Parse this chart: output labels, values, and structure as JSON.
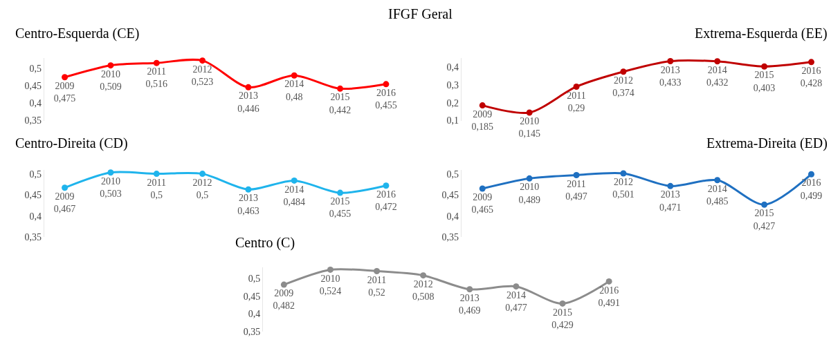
{
  "chart_data": [
    {
      "type": "line",
      "title": "IFGF Geral",
      "subtitle": "Centro-Esquerda (CE)",
      "categories": [
        "2009",
        "2010",
        "2011",
        "2012",
        "2013",
        "2014",
        "2015",
        "2016"
      ],
      "series": [
        {
          "color": "#ff0000",
          "values": [
            0.475,
            0.509,
            0.516,
            0.523,
            0.446,
            0.48,
            0.442,
            0.455
          ],
          "value_labels": [
            "2009\n0,475",
            "2010\n0,509",
            "2011\n0,516",
            "2012\n0,523",
            "2013\n0,446",
            "2014\n0,48",
            "2015\n0,442",
            "2016\n0,455"
          ]
        }
      ],
      "ylim": [
        0.35,
        0.53
      ],
      "yticks": [
        {
          "value": 0.35,
          "label": "0,35"
        },
        {
          "value": 0.4,
          "label": "0,4"
        },
        {
          "value": 0.45,
          "label": "0,45"
        },
        {
          "value": 0.5,
          "label": "0,5"
        }
      ],
      "tick_labels": "y",
      "marker": "circle",
      "line_style": "solid"
    },
    {
      "type": "line",
      "subtitle": "Extrema-Esquerda (EE)",
      "categories": [
        "2009",
        "2010",
        "2011",
        "2012",
        "2013",
        "2014",
        "2015",
        "2016"
      ],
      "series": [
        {
          "color": "#c00000",
          "values": [
            0.185,
            0.145,
            0.29,
            0.374,
            0.433,
            0.432,
            0.403,
            0.428
          ],
          "value_labels": [
            "2009\n0,185",
            "2010\n0,145",
            "2011\n0,29",
            "2012\n0,374",
            "2013\n0,433",
            "2014\n0,432",
            "2015\n0,403",
            "2016\n0,428"
          ]
        }
      ],
      "ylim": [
        0.1,
        0.45
      ],
      "yticks": [
        {
          "value": 0.1,
          "label": "0,1"
        },
        {
          "value": 0.2,
          "label": "0,2"
        },
        {
          "value": 0.3,
          "label": "0,3"
        },
        {
          "value": 0.4,
          "label": "0,4"
        }
      ],
      "tick_labels": "y",
      "marker": "circle",
      "line_style": "solid"
    },
    {
      "type": "line",
      "subtitle": "Centro-Direita (CD)",
      "categories": [
        "2009",
        "2010",
        "2011",
        "2012",
        "2013",
        "2014",
        "2015",
        "2016"
      ],
      "series": [
        {
          "color": "#1fb4ec",
          "values": [
            0.467,
            0.503,
            0.5,
            0.5,
            0.463,
            0.484,
            0.455,
            0.472
          ],
          "value_labels": [
            "2009\n0,467",
            "2010\n0,503",
            "2011\n0,5",
            "2012\n0,5",
            "2013\n0,463",
            "2014\n0,484",
            "2015\n0,455",
            "2016\n0,472"
          ]
        }
      ],
      "ylim": [
        0.35,
        0.51
      ],
      "yticks": [
        {
          "value": 0.35,
          "label": "0,35"
        },
        {
          "value": 0.4,
          "label": "0,4"
        },
        {
          "value": 0.45,
          "label": "0,45"
        },
        {
          "value": 0.5,
          "label": "0,5"
        }
      ],
      "tick_labels": "y",
      "marker": "circle",
      "line_style": "solid"
    },
    {
      "type": "line",
      "subtitle": "Extrema-Direita (ED)",
      "categories": [
        "2009",
        "2010",
        "2011",
        "2012",
        "2013",
        "2014",
        "2015",
        "2016"
      ],
      "series": [
        {
          "color": "#1f70c1",
          "values": [
            0.465,
            0.489,
            0.497,
            0.501,
            0.471,
            0.485,
            0.427,
            0.499
          ],
          "value_labels": [
            "2009\n0,465",
            "2010\n0,489",
            "2011\n0,497",
            "2012\n0,501",
            "2013\n0,471",
            "2014\n0,485",
            "2015\n0,427",
            "2016\n0,499"
          ]
        }
      ],
      "ylim": [
        0.35,
        0.51
      ],
      "yticks": [
        {
          "value": 0.35,
          "label": "0,35"
        },
        {
          "value": 0.4,
          "label": "0,4"
        },
        {
          "value": 0.45,
          "label": "0,45"
        },
        {
          "value": 0.5,
          "label": "0,5"
        }
      ],
      "tick_labels": "y",
      "marker": "circle",
      "line_style": "solid"
    },
    {
      "type": "line",
      "subtitle": "Centro (C)",
      "categories": [
        "2009",
        "2010",
        "2011",
        "2012",
        "2013",
        "2014",
        "2015",
        "2016"
      ],
      "series": [
        {
          "color": "#8c8c8c",
          "values": [
            0.482,
            0.524,
            0.52,
            0.508,
            0.469,
            0.477,
            0.429,
            0.491
          ],
          "value_labels": [
            "2009\n0,482",
            "2010\n0,524",
            "2011\n0,52",
            "2012\n0,508",
            "2013\n0,469",
            "2014\n0,477",
            "2015\n0,429",
            "2016\n0,491"
          ]
        }
      ],
      "ylim": [
        0.35,
        0.53
      ],
      "yticks": [
        {
          "value": 0.35,
          "label": "0,35"
        },
        {
          "value": 0.4,
          "label": "0,4"
        },
        {
          "value": 0.45,
          "label": "0,45"
        },
        {
          "value": 0.5,
          "label": "0,5"
        }
      ],
      "tick_labels": "y",
      "marker": "circle",
      "line_style": "solid"
    }
  ]
}
